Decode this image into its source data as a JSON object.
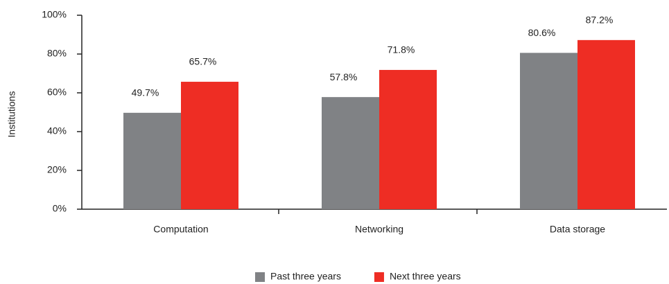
{
  "chart_data": {
    "type": "bar",
    "y_label": "Institutions",
    "categories": [
      "Computation",
      "Networking",
      "Data storage"
    ],
    "series": [
      {
        "name": "Past three years",
        "color": "#808285",
        "values": [
          49.7,
          57.8,
          80.6
        ],
        "value_labels": [
          "49.7%",
          "57.8%",
          "80.6%"
        ]
      },
      {
        "name": "Next three years",
        "color": "#ee2d24",
        "values": [
          65.7,
          71.8,
          87.2
        ],
        "value_labels": [
          "65.7%",
          "71.8%",
          "87.2%"
        ]
      }
    ],
    "ylim": [
      0,
      100
    ],
    "yticks": [
      {
        "value": 0,
        "label": "0%"
      },
      {
        "value": 20,
        "label": "20%"
      },
      {
        "value": 40,
        "label": "40%"
      },
      {
        "value": 60,
        "label": "60%"
      },
      {
        "value": 80,
        "label": "80%"
      },
      {
        "value": 100,
        "label": "100%"
      }
    ],
    "grid": false,
    "legend": "bottom"
  }
}
